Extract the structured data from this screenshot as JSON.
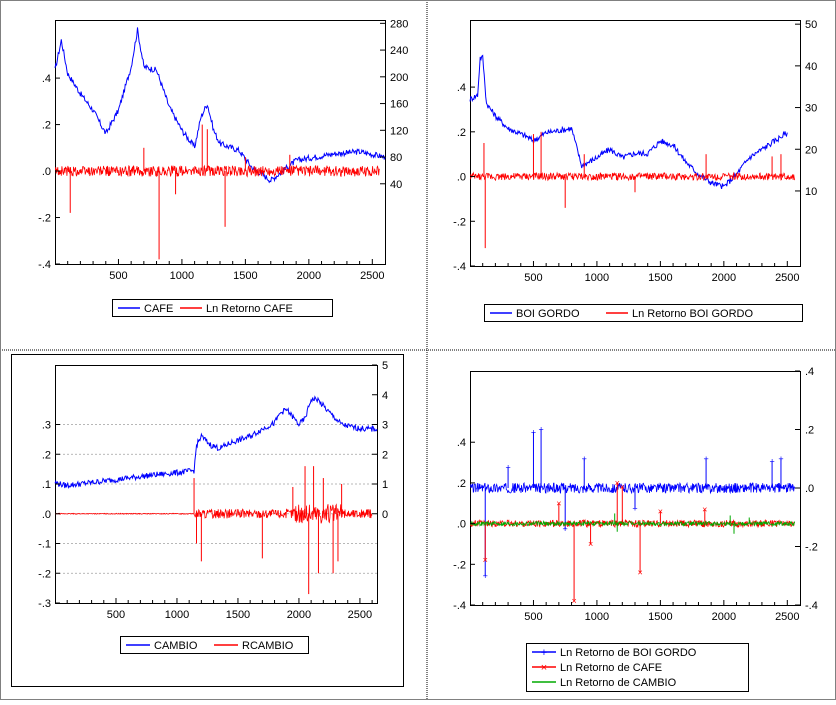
{
  "chart_data": [
    {
      "id": "cafe",
      "type": "line",
      "x_ticks": [
        "500",
        "1000",
        "1500",
        "2000",
        "2500"
      ],
      "xlim": [
        0,
        2600
      ],
      "left_axis": {
        "ticks": [
          ".4",
          ".2",
          ".0",
          "-.2",
          "-.4"
        ],
        "values": [
          0.4,
          0.2,
          0.0,
          -0.2,
          -0.4
        ],
        "lim": [
          -0.4,
          0.65
        ]
      },
      "right_axis": {
        "ticks": [
          "280",
          "240",
          "200",
          "160",
          "120",
          "80",
          "40"
        ],
        "values": [
          280,
          240,
          200,
          160,
          120,
          80,
          40
        ],
        "lim": [
          -80,
          285
        ]
      },
      "grid": false,
      "legend_position": "bottom",
      "series": [
        {
          "name": "CAFE",
          "color": "#0000ff",
          "axis": "right",
          "kind": "level",
          "points": [
            [
              0,
              210
            ],
            [
              50,
              255
            ],
            [
              100,
              205
            ],
            [
              200,
              175
            ],
            [
              300,
              150
            ],
            [
              400,
              115
            ],
            [
              500,
              150
            ],
            [
              600,
              215
            ],
            [
              650,
              270
            ],
            [
              700,
              215
            ],
            [
              800,
              210
            ],
            [
              900,
              155
            ],
            [
              1000,
              120
            ],
            [
              1100,
              95
            ],
            [
              1150,
              140
            ],
            [
              1200,
              160
            ],
            [
              1250,
              120
            ],
            [
              1300,
              100
            ],
            [
              1450,
              90
            ],
            [
              1550,
              65
            ],
            [
              1700,
              45
            ],
            [
              1800,
              60
            ],
            [
              1900,
              75
            ],
            [
              2050,
              80
            ],
            [
              2200,
              85
            ],
            [
              2400,
              88
            ],
            [
              2600,
              80
            ]
          ]
        },
        {
          "name": "Ln Retorno CAFE",
          "color": "#ff0000",
          "axis": "left",
          "kind": "returns",
          "spikes": [
            [
              820,
              -0.38
            ],
            [
              1340,
              -0.24
            ],
            [
              1160,
              0.2
            ],
            [
              1200,
              0.18
            ],
            [
              1850,
              0.07
            ],
            [
              120,
              -0.18
            ],
            [
              700,
              0.1
            ],
            [
              1500,
              0.06
            ],
            [
              950,
              -0.1
            ]
          ]
        }
      ]
    },
    {
      "id": "boi",
      "type": "line",
      "x_ticks": [
        "500",
        "1000",
        "1500",
        "2000",
        "2500"
      ],
      "xlim": [
        0,
        2600
      ],
      "left_axis": {
        "ticks": [
          ".4",
          ".2",
          ".0",
          "-.2",
          "-.4"
        ],
        "values": [
          0.4,
          0.2,
          0.0,
          -0.2,
          -0.4
        ],
        "lim": [
          -0.4,
          0.7
        ]
      },
      "right_axis": {
        "ticks": [
          "50",
          "40",
          "30",
          "20",
          "10"
        ],
        "values": [
          50,
          40,
          30,
          20,
          10
        ],
        "lim": [
          -8,
          51
        ]
      },
      "grid": false,
      "legend_position": "bottom",
      "series": [
        {
          "name": "BOI GORDO",
          "color": "#0000ff",
          "axis": "right",
          "kind": "level",
          "points": [
            [
              0,
              32
            ],
            [
              60,
              33
            ],
            [
              80,
              42
            ],
            [
              100,
              42
            ],
            [
              130,
              31
            ],
            [
              200,
              28
            ],
            [
              300,
              25
            ],
            [
              450,
              23
            ],
            [
              500,
              22
            ],
            [
              600,
              24
            ],
            [
              800,
              25
            ],
            [
              880,
              16
            ],
            [
              1000,
              18
            ],
            [
              1100,
              20
            ],
            [
              1200,
              18
            ],
            [
              1300,
              19
            ],
            [
              1400,
              19
            ],
            [
              1500,
              22
            ],
            [
              1600,
              21
            ],
            [
              1700,
              17
            ],
            [
              1800,
              14
            ],
            [
              1900,
              12
            ],
            [
              2000,
              11
            ],
            [
              2100,
              14
            ],
            [
              2200,
              18
            ],
            [
              2350,
              21
            ],
            [
              2500,
              24
            ]
          ]
        },
        {
          "name": "Ln Retorno BOI GORDO",
          "color": "#ff0000",
          "axis": "left",
          "kind": "returns",
          "spikes": [
            [
              120,
              -0.32
            ],
            [
              110,
              0.15
            ],
            [
              500,
              0.19
            ],
            [
              560,
              0.2
            ],
            [
              750,
              -0.14
            ],
            [
              900,
              0.1
            ],
            [
              1860,
              0.1
            ],
            [
              2380,
              0.09
            ],
            [
              2450,
              0.1
            ],
            [
              1300,
              -0.07
            ]
          ]
        }
      ]
    },
    {
      "id": "cambio",
      "type": "line",
      "x_ticks": [
        "500",
        "1000",
        "1500",
        "2000",
        "2500"
      ],
      "xlim": [
        0,
        2640
      ],
      "left_axis": {
        "ticks": [
          ".3",
          ".2",
          ".1",
          ".0",
          "-.1",
          "-.2",
          "-.3"
        ],
        "values": [
          0.3,
          0.2,
          0.1,
          0.0,
          -0.1,
          -0.2,
          -0.3
        ],
        "lim": [
          -0.3,
          0.5
        ]
      },
      "right_axis": {
        "ticks": [
          "5",
          "4",
          "3",
          "2",
          "1",
          "0"
        ],
        "values": [
          5,
          4,
          3,
          2,
          1,
          0
        ],
        "lim": [
          -3,
          5
        ]
      },
      "grid": true,
      "legend_position": "bottom",
      "series": [
        {
          "name": "CAMBIO",
          "color": "#0000ff",
          "axis": "right",
          "kind": "level",
          "points": [
            [
              0,
              1.05
            ],
            [
              80,
              0.95
            ],
            [
              200,
              1.0
            ],
            [
              400,
              1.1
            ],
            [
              600,
              1.2
            ],
            [
              800,
              1.3
            ],
            [
              1000,
              1.38
            ],
            [
              1140,
              1.45
            ],
            [
              1160,
              2.3
            ],
            [
              1200,
              2.6
            ],
            [
              1280,
              2.3
            ],
            [
              1350,
              2.2
            ],
            [
              1450,
              2.4
            ],
            [
              1600,
              2.6
            ],
            [
              1700,
              2.85
            ],
            [
              1800,
              3.05
            ],
            [
              1850,
              3.4
            ],
            [
              1900,
              3.5
            ],
            [
              2000,
              3.0
            ],
            [
              2050,
              3.2
            ],
            [
              2100,
              3.85
            ],
            [
              2150,
              3.85
            ],
            [
              2250,
              3.4
            ],
            [
              2350,
              3.0
            ],
            [
              2450,
              2.9
            ],
            [
              2550,
              2.85
            ],
            [
              2640,
              2.85
            ]
          ]
        },
        {
          "name": "RCAMBIO",
          "color": "#ff0000",
          "axis": "left",
          "kind": "returns",
          "spikes": [
            [
              1140,
              0.12
            ],
            [
              1160,
              -0.1
            ],
            [
              1200,
              -0.16
            ],
            [
              1700,
              -0.15
            ],
            [
              1950,
              0.09
            ],
            [
              2050,
              0.16
            ],
            [
              2080,
              -0.27
            ],
            [
              2120,
              0.16
            ],
            [
              2160,
              -0.2
            ],
            [
              2200,
              0.12
            ],
            [
              2280,
              -0.2
            ],
            [
              2320,
              -0.16
            ],
            [
              2350,
              0.1
            ]
          ]
        }
      ]
    },
    {
      "id": "retornos",
      "type": "line",
      "x_ticks": [
        "500",
        "1000",
        "1500",
        "2000",
        "2500"
      ],
      "xlim": [
        0,
        2600
      ],
      "left_axis": {
        "ticks": [
          ".4",
          ".2",
          ".0",
          "-.2",
          "-.4"
        ],
        "values": [
          0.4,
          0.2,
          0.0,
          -0.2,
          -0.4
        ],
        "lim": [
          -0.4,
          0.75
        ]
      },
      "right_axis": {
        "ticks": [
          ".4",
          ".2",
          ".0",
          "-.2",
          "-.4"
        ],
        "values": [
          0.4,
          0.2,
          0.0,
          -0.2,
          -0.4
        ],
        "lim": [
          -0.4,
          0.4
        ]
      },
      "grid": false,
      "legend_position": "bottom",
      "series": [
        {
          "name": "Ln Retorno de BOI GORDO",
          "color": "#0000ff",
          "axis": "right",
          "kind": "returns",
          "marker": "+",
          "spikes": [
            [
              120,
              -0.3
            ],
            [
              500,
              0.19
            ],
            [
              560,
              0.2
            ],
            [
              750,
              -0.14
            ],
            [
              900,
              0.1
            ],
            [
              1860,
              0.1
            ],
            [
              2380,
              0.09
            ],
            [
              2450,
              0.1
            ],
            [
              300,
              0.07
            ],
            [
              1300,
              -0.07
            ]
          ]
        },
        {
          "name": "Ln Retorno de CAFE",
          "color": "#ff0000",
          "axis": "left",
          "kind": "returns",
          "marker": "x",
          "spikes": [
            [
              820,
              -0.38
            ],
            [
              1340,
              -0.24
            ],
            [
              1160,
              0.2
            ],
            [
              1200,
              0.18
            ],
            [
              1850,
              0.07
            ],
            [
              120,
              -0.18
            ],
            [
              700,
              0.1
            ],
            [
              1500,
              0.06
            ],
            [
              950,
              -0.1
            ]
          ]
        },
        {
          "name": "Ln Retorno de CAMBIO",
          "color": "#00aa00",
          "axis": "left",
          "kind": "returns",
          "marker": "none",
          "spikes": [
            [
              1140,
              0.05
            ],
            [
              1160,
              -0.04
            ],
            [
              2080,
              -0.05
            ],
            [
              2050,
              0.04
            ],
            [
              2200,
              0.03
            ]
          ]
        }
      ]
    }
  ]
}
